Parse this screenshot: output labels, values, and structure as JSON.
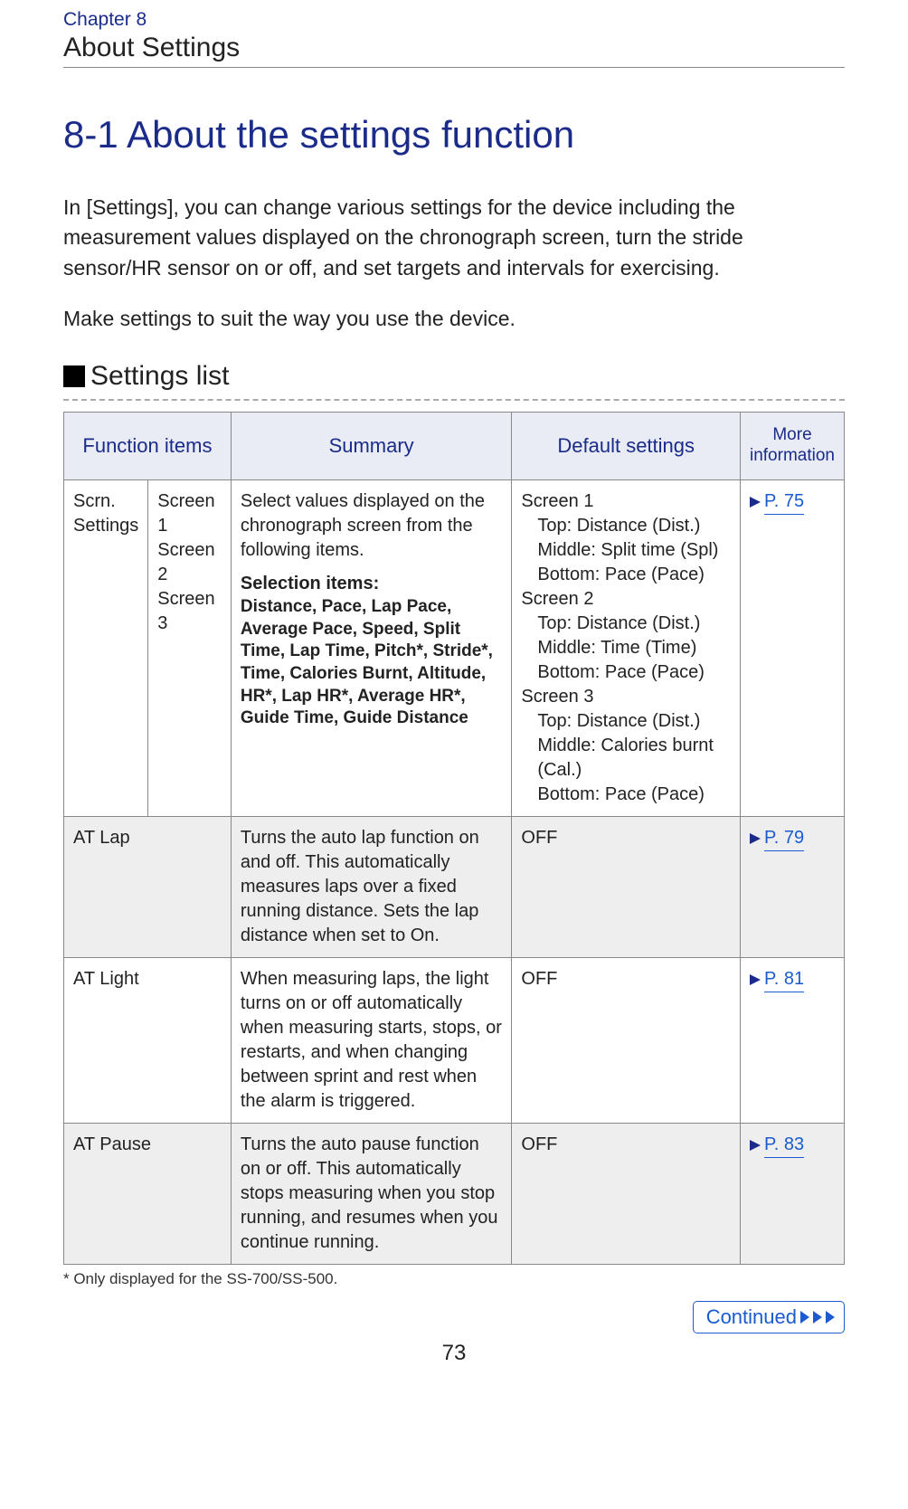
{
  "colors": {
    "brand_blue": "#1a2b8a",
    "link_blue": "#1a5bcf",
    "header_bg": "#e9ecf4",
    "shade_bg": "#eeeeee",
    "border": "#888888",
    "text": "#222222"
  },
  "chapter": "Chapter 8",
  "section_title": "About Settings",
  "main_heading": "8-1 About the settings function",
  "intro_p1": "In [Settings], you can change various settings for the device including the measurement values displayed on the chronograph screen, turn the stride sensor/HR sensor on or off, and set targets and intervals for exercising.",
  "intro_p2": "Make settings to suit the way you use the device.",
  "subhead": "Settings list",
  "headers": {
    "function": "Function items",
    "summary": "Summary",
    "default": "Default settings",
    "more": "More information"
  },
  "row1": {
    "func": "Scrn. Settings",
    "screens": "Screen 1\nScreen 2\nScreen 3",
    "summary_lead": "Select  values displayed on the chronograph screen from the following items.",
    "selection_head": "Selection items:",
    "selection_body": "Distance, Pace, Lap Pace, Average Pace, Speed, Split Time, Lap Time, Pitch*, Stride*, Time, Calories Burnt, Altitude, HR*, Lap HR*, Average HR*, Guide Time, Guide Distance",
    "default": {
      "s1_head": "Screen 1",
      "s1_top": "Top: Distance (Dist.)",
      "s1_mid": "Middle: Split time (Spl)",
      "s1_bot": "Bottom: Pace (Pace)",
      "s2_head": "Screen 2",
      "s2_top": "Top: Distance (Dist.)",
      "s2_mid": "Middle: Time (Time)",
      "s2_bot": "Bottom: Pace (Pace)",
      "s3_head": "Screen 3",
      "s3_top": "Top: Distance (Dist.)",
      "s3_mid": "Middle: Calories burnt (Cal.)",
      "s3_bot": "Bottom: Pace (Pace)"
    },
    "page": " P. 75"
  },
  "row2": {
    "func": "AT Lap",
    "summary": "Turns the auto lap function on and off. This automatically measures laps over a fixed running distance. Sets the lap distance when set to On.",
    "default": "OFF",
    "page": " P. 79"
  },
  "row3": {
    "func": "AT Light",
    "summary": "When measuring laps, the light turns on or off automatically when measuring starts, stops, or restarts, and when changing between sprint and rest when the alarm is triggered.",
    "default": "OFF",
    "page": " P. 81"
  },
  "row4": {
    "func": "AT Pause",
    "summary": "Turns the auto pause function on or off. This automatically stops measuring when you stop running, and resumes when you continue running.",
    "default": "OFF",
    "page": " P. 83"
  },
  "footnote": "* Only displayed for the SS-700/SS-500.",
  "continued": "Continued",
  "page_number": "73"
}
